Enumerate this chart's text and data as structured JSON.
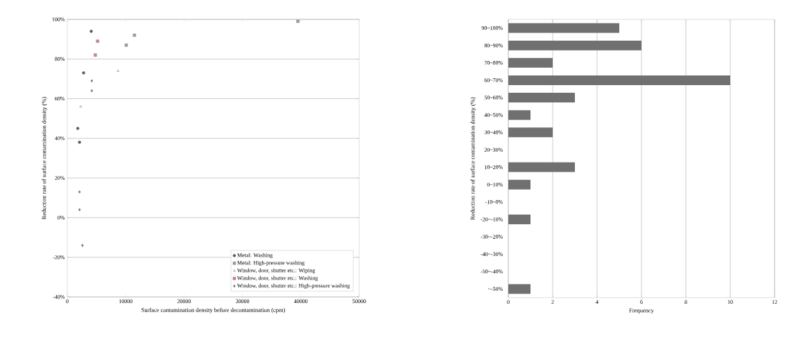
{
  "chart_data": [
    {
      "type": "scatter",
      "xlabel": "Surface contamination density before decontamination (cpm)",
      "ylabel": "Reduction rate of surface contamination density (%)",
      "xlim": [
        0,
        50000
      ],
      "xticks": [
        0,
        10000,
        20000,
        30000,
        40000,
        50000
      ],
      "ylim": [
        -40,
        100
      ],
      "yticks": [
        {
          "value": -40,
          "label": "-40%"
        },
        {
          "value": -20,
          "label": "-20%"
        },
        {
          "value": 0,
          "label": "0%"
        },
        {
          "value": 20,
          "label": "20%"
        },
        {
          "value": 40,
          "label": "40%"
        },
        {
          "value": 60,
          "label": "60%"
        },
        {
          "value": 80,
          "label": "80%"
        },
        {
          "value": 100,
          "label": "100%"
        }
      ],
      "grid": "y",
      "legend": "bottom right",
      "series": [
        {
          "name": "Metal: Washing",
          "color": "#606060",
          "marker": "circle",
          "x": [
            4100,
            2800,
            1800,
            2100
          ],
          "values": [
            94,
            73,
            45,
            38
          ]
        },
        {
          "name": "Metal: High-pressure washing",
          "color": "#a0a0a0",
          "marker": "square",
          "x": [
            11500,
            39500,
            10100
          ],
          "values": [
            92,
            99,
            87
          ]
        },
        {
          "name": "Window, door, shutter etc.: Wiping",
          "color": "#b0e0e0",
          "marker": "triangle",
          "x": [
            8700,
            2300
          ],
          "values": [
            74,
            56
          ]
        },
        {
          "name": "Window, door, shutter etc.: Washing",
          "color": "#d080a0",
          "marker": "square",
          "x": [
            5200,
            4800
          ],
          "values": [
            89,
            82
          ]
        },
        {
          "name": "Window, door, shutter etc.: High-pressure washing",
          "color": "#808080",
          "marker": "diamond",
          "x": [
            4200,
            4200,
            2100,
            2100,
            2600
          ],
          "values": [
            69,
            64,
            13,
            4,
            -14
          ]
        }
      ]
    },
    {
      "type": "bar",
      "orientation": "horizontal",
      "xlabel": "Frequency",
      "ylabel": "Reduction rate of surface contamination density (%)",
      "categories": [
        "90~100%",
        "80~90%",
        "70~80%",
        "60~70%",
        "50~60%",
        "40~50%",
        "30~40%",
        "20~30%",
        "10~20%",
        "0~10%",
        "-10~0%",
        "-20~-10%",
        "-30~-20%",
        "-40~-30%",
        "-50~-40%",
        "~-50%"
      ],
      "values": [
        5,
        6,
        2,
        10,
        3,
        1,
        2,
        0,
        3,
        1,
        0,
        1,
        0,
        0,
        0,
        1
      ],
      "color": "#707070",
      "xlim": [
        0,
        12
      ],
      "xticks": [
        0,
        2,
        4,
        6,
        8,
        10,
        12
      ],
      "grid": "x"
    }
  ]
}
